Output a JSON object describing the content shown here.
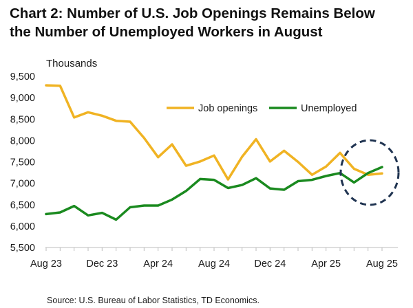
{
  "header": {
    "title_line1": "Chart 2: Number of U.S. Job Openings Remains Below",
    "title_line2": "the Number of Unemployed Workers in August"
  },
  "footer": {
    "source": "Source: U.S. Bureau of Labor Statistics, TD Economics."
  },
  "chart_data": {
    "type": "line",
    "title": "Chart 2: Number of U.S. Job Openings Remains Below the Number of Unemployed Workers in August",
    "ylabel": "Thousands",
    "xlabel": "",
    "ylim": [
      5500,
      9500
    ],
    "yticks": [
      9500,
      9000,
      8500,
      8000,
      7500,
      7000,
      6500,
      6000,
      5500
    ],
    "ytick_labels": [
      "9,500",
      "9,000",
      "8,500",
      "8,000",
      "7,500",
      "7,000",
      "6,500",
      "6,000",
      "5,500"
    ],
    "x": [
      "Aug 23",
      "Sep 23",
      "Oct 23",
      "Nov 23",
      "Dec 23",
      "Jan 24",
      "Feb 24",
      "Mar 24",
      "Apr 24",
      "May 24",
      "Jun 24",
      "Jul 24",
      "Aug 24",
      "Sep 24",
      "Oct 24",
      "Nov 24",
      "Dec 24",
      "Jan 25",
      "Feb 25",
      "Mar 25",
      "Apr 25",
      "May 25",
      "Jun 25",
      "Jul 25",
      "Aug 25"
    ],
    "xtick_labels": [
      "Aug 23",
      "Dec 23",
      "Apr 24",
      "Aug 24",
      "Dec 24",
      "Apr 25",
      "Aug 25"
    ],
    "xtick_indices": [
      0,
      4,
      8,
      12,
      16,
      20,
      24
    ],
    "series": [
      {
        "name": "Job openings",
        "color": "#f0b323",
        "values": [
          9290,
          9280,
          8540,
          8660,
          8580,
          8460,
          8440,
          8060,
          7610,
          7910,
          7410,
          7510,
          7650,
          7090,
          7620,
          8030,
          7510,
          7760,
          7500,
          7200,
          7390,
          7710,
          7340,
          7200,
          7230
        ]
      },
      {
        "name": "Unemployed",
        "color": "#1a8a1f",
        "values": [
          6280,
          6320,
          6470,
          6250,
          6310,
          6150,
          6440,
          6480,
          6480,
          6620,
          6820,
          7100,
          7080,
          6890,
          6960,
          7120,
          6880,
          6850,
          7050,
          7080,
          7170,
          7240,
          7020,
          7240,
          7380
        ]
      }
    ],
    "legend": "top-right",
    "grid": false,
    "annotation": "dashed circle highlighting Jul–Aug 2025",
    "annotation_color": "#1f3350"
  }
}
